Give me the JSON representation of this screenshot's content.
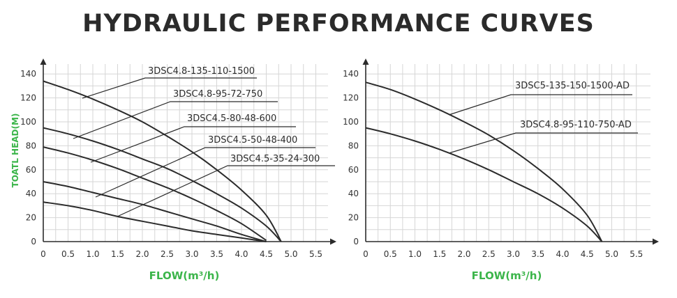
{
  "page_title": "HYDRAULIC PERFORMANCE CURVES",
  "colors": {
    "label_green": "#3bb54a",
    "curve": "#2b2b2b",
    "grid": "#d6d6d6"
  },
  "chart_data": [
    {
      "type": "line",
      "xlabel": "FLOW(m³/h)",
      "ylabel": "TOATL HEAD(M)",
      "xlim": [
        0,
        5.8
      ],
      "ylim": [
        0,
        145
      ],
      "x_ticks": [
        "0",
        "0.5",
        "1.0",
        "1.5",
        "2.0",
        "2.5",
        "3.0",
        "3.5",
        "4.0",
        "4.5",
        "5.0",
        "5.5"
      ],
      "y_ticks": [
        "0",
        "20",
        "40",
        "60",
        "80",
        "100",
        "120",
        "140"
      ],
      "grid": true,
      "series": [
        {
          "name": "3DSC4.8-135-110-1500",
          "x": [
            0,
            0.5,
            1.0,
            1.5,
            2.0,
            2.5,
            3.0,
            3.5,
            4.0,
            4.5,
            4.8
          ],
          "y": [
            134,
            127,
            119,
            110,
            100,
            88,
            75,
            60,
            43,
            22,
            0
          ]
        },
        {
          "name": "3DSC4.8-95-72-750",
          "x": [
            0,
            0.5,
            1.0,
            1.5,
            2.0,
            2.5,
            3.0,
            3.5,
            4.0,
            4.5,
            4.8
          ],
          "y": [
            95,
            90,
            84,
            77,
            69,
            61,
            51,
            40,
            28,
            13,
            0
          ]
        },
        {
          "name": "3DSC4.5-80-48-600",
          "x": [
            0,
            0.5,
            1.0,
            1.5,
            2.0,
            2.5,
            3.0,
            3.5,
            4.0,
            4.5
          ],
          "y": [
            79,
            74,
            68,
            61,
            53,
            45,
            36,
            26,
            15,
            1
          ]
        },
        {
          "name": "3DSC4.5-50-48-400",
          "x": [
            0,
            0.5,
            1.0,
            1.5,
            2.0,
            2.5,
            3.0,
            3.5,
            4.0,
            4.5
          ],
          "y": [
            50,
            46,
            41,
            36,
            31,
            25,
            19,
            13,
            6,
            0
          ]
        },
        {
          "name": "3DSC4.5-35-24-300",
          "x": [
            0,
            0.5,
            1.0,
            1.5,
            2.0,
            2.5,
            3.0,
            3.5,
            4.0,
            4.5
          ],
          "y": [
            33,
            30,
            26,
            21,
            17,
            13,
            9,
            6,
            3,
            0
          ]
        }
      ]
    },
    {
      "type": "line",
      "xlabel": "FLOW(m³/h)",
      "ylabel": "",
      "xlim": [
        0,
        5.8
      ],
      "ylim": [
        0,
        145
      ],
      "x_ticks": [
        "0",
        "0.5",
        "1.0",
        "1.5",
        "2.0",
        "2.5",
        "3.0",
        "3.5",
        "4.0",
        "4.5",
        "5.0",
        "5.5"
      ],
      "y_ticks": [
        "0",
        "20",
        "40",
        "60",
        "80",
        "100",
        "120",
        "140"
      ],
      "grid": true,
      "series": [
        {
          "name": "3DSC5-135-150-1500-AD",
          "x": [
            0,
            0.5,
            1.0,
            1.5,
            2.0,
            2.5,
            3.0,
            3.5,
            4.0,
            4.5,
            4.8
          ],
          "y": [
            133,
            127,
            119,
            110,
            100,
            89,
            76,
            61,
            44,
            22,
            0
          ]
        },
        {
          "name": "3DSC4.8-95-110-750-AD",
          "x": [
            0,
            0.5,
            1.0,
            1.5,
            2.0,
            2.5,
            3.0,
            3.5,
            4.0,
            4.5,
            4.8
          ],
          "y": [
            95,
            90,
            84,
            77,
            69,
            60,
            50,
            40,
            28,
            13,
            0
          ]
        }
      ]
    }
  ]
}
